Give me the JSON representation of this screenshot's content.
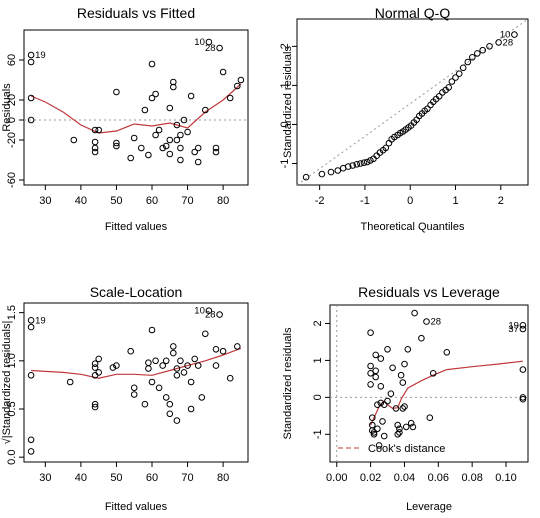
{
  "chart_data": [
    {
      "id": "rvf",
      "type": "scatter",
      "title": "Residuals vs Fitted",
      "xlabel": "Fitted values",
      "ylabel": "Residuals",
      "xlim": [
        24,
        87
      ],
      "ylim": [
        -65,
        90
      ],
      "xticks": [
        30,
        40,
        50,
        60,
        70,
        80
      ],
      "yticks": [
        -60,
        -20,
        0,
        20,
        60
      ],
      "ytick_labels": [
        "-60",
        "-20",
        "0",
        "20",
        "60"
      ],
      "hline": 0,
      "points": [
        [
          26,
          65
        ],
        [
          26,
          58
        ],
        [
          26,
          0
        ],
        [
          26,
          22
        ],
        [
          38,
          -20
        ],
        [
          44,
          -10
        ],
        [
          44,
          -22
        ],
        [
          44,
          -28
        ],
        [
          44,
          -32
        ],
        [
          45,
          -10
        ],
        [
          50,
          28
        ],
        [
          50,
          -23
        ],
        [
          50,
          -26
        ],
        [
          54,
          -38
        ],
        [
          55,
          -18
        ],
        [
          57,
          -28
        ],
        [
          58,
          10
        ],
        [
          59,
          -35
        ],
        [
          60,
          22
        ],
        [
          60,
          56
        ],
        [
          61,
          26
        ],
        [
          61,
          -15
        ],
        [
          62,
          -10
        ],
        [
          63,
          -28
        ],
        [
          64,
          -26
        ],
        [
          65,
          12
        ],
        [
          65,
          -20
        ],
        [
          65,
          -34
        ],
        [
          66,
          33
        ],
        [
          66,
          38
        ],
        [
          67,
          -5
        ],
        [
          67,
          -20
        ],
        [
          68,
          -28
        ],
        [
          68,
          -40
        ],
        [
          68,
          -15
        ],
        [
          69,
          0
        ],
        [
          70,
          -12
        ],
        [
          71,
          24
        ],
        [
          72,
          -32
        ],
        [
          73,
          -42
        ],
        [
          73,
          -28
        ],
        [
          75,
          10
        ],
        [
          76,
          78
        ],
        [
          78,
          -28
        ],
        [
          78,
          -32
        ],
        [
          79,
          72
        ],
        [
          80,
          48
        ],
        [
          82,
          22
        ],
        [
          84,
          34
        ],
        [
          85,
          40
        ]
      ],
      "smooth": [
        [
          26,
          24
        ],
        [
          30,
          18
        ],
        [
          35,
          8
        ],
        [
          40,
          -5
        ],
        [
          45,
          -13
        ],
        [
          50,
          -11
        ],
        [
          55,
          -4
        ],
        [
          60,
          -6
        ],
        [
          65,
          -3
        ],
        [
          70,
          -8
        ],
        [
          75,
          8
        ],
        [
          80,
          20
        ],
        [
          85,
          36
        ]
      ],
      "annotations": [
        {
          "label": "19",
          "x": 26,
          "y": 65,
          "anchor": "start"
        },
        {
          "label": "10",
          "x": 76,
          "y": 78,
          "anchor": "end"
        },
        {
          "label": "28",
          "x": 79,
          "y": 72,
          "anchor": "end"
        }
      ]
    },
    {
      "id": "qq",
      "type": "scatter",
      "title": "Normal Q-Q",
      "xlabel": "Theoretical Quantiles",
      "ylabel": "Standardized residuals",
      "xlim": [
        -2.5,
        2.6
      ],
      "ylim": [
        -1.55,
        2.7
      ],
      "xticks": [
        -2,
        -1,
        0,
        1,
        2
      ],
      "yticks": [
        -1,
        0,
        1,
        2
      ],
      "ytick_labels": [
        "-1",
        "0",
        "1",
        "2"
      ],
      "refline": [
        [
          -2.5,
          -1.55
        ],
        [
          2.6,
          2.7
        ]
      ],
      "points": [
        [
          -2.3,
          -1.35
        ],
        [
          -1.95,
          -1.27
        ],
        [
          -1.75,
          -1.22
        ],
        [
          -1.6,
          -1.18
        ],
        [
          -1.48,
          -1.12
        ],
        [
          -1.37,
          -1.08
        ],
        [
          -1.27,
          -1.05
        ],
        [
          -1.18,
          -1.02
        ],
        [
          -1.1,
          -1.0
        ],
        [
          -1.02,
          -0.98
        ],
        [
          -0.95,
          -0.96
        ],
        [
          -0.88,
          -0.92
        ],
        [
          -0.81,
          -0.88
        ],
        [
          -0.74,
          -0.8
        ],
        [
          -0.67,
          -0.72
        ],
        [
          -0.6,
          -0.66
        ],
        [
          -0.54,
          -0.6
        ],
        [
          -0.47,
          -0.48
        ],
        [
          -0.41,
          -0.38
        ],
        [
          -0.35,
          -0.32
        ],
        [
          -0.28,
          -0.27
        ],
        [
          -0.22,
          -0.22
        ],
        [
          -0.16,
          -0.18
        ],
        [
          -0.1,
          -0.13
        ],
        [
          -0.04,
          -0.08
        ],
        [
          0.02,
          -0.03
        ],
        [
          0.08,
          0.05
        ],
        [
          0.14,
          0.12
        ],
        [
          0.2,
          0.22
        ],
        [
          0.26,
          0.28
        ],
        [
          0.32,
          0.35
        ],
        [
          0.38,
          0.4
        ],
        [
          0.45,
          0.5
        ],
        [
          0.51,
          0.58
        ],
        [
          0.57,
          0.65
        ],
        [
          0.64,
          0.72
        ],
        [
          0.71,
          0.82
        ],
        [
          0.78,
          0.88
        ],
        [
          0.85,
          0.95
        ],
        [
          0.92,
          1.1
        ],
        [
          1.0,
          1.2
        ],
        [
          1.08,
          1.3
        ],
        [
          1.17,
          1.45
        ],
        [
          1.27,
          1.6
        ],
        [
          1.37,
          1.72
        ],
        [
          1.48,
          1.82
        ],
        [
          1.6,
          1.9
        ],
        [
          1.75,
          2.0
        ],
        [
          1.95,
          2.1
        ],
        [
          2.3,
          2.3
        ]
      ],
      "annotations": [
        {
          "label": "10",
          "x": 2.3,
          "y": 2.3,
          "anchor": "end"
        },
        {
          "label": "28",
          "x": 1.95,
          "y": 2.1,
          "anchor": "start"
        }
      ]
    },
    {
      "id": "sl",
      "type": "scatter",
      "title": "Scale-Location",
      "xlabel": "Fitted values",
      "ylabel": "√|Standardized residuals|",
      "xlim": [
        24,
        87
      ],
      "ylim": [
        -0.05,
        1.6
      ],
      "xticks": [
        30,
        40,
        50,
        60,
        70,
        80
      ],
      "yticks": [
        0.0,
        0.5,
        1.0,
        1.5
      ],
      "ytick_labels": [
        "0.0",
        "0.5",
        "1.0",
        "1.5"
      ],
      "points": [
        [
          26,
          1.42
        ],
        [
          26,
          1.35
        ],
        [
          26,
          0.85
        ],
        [
          26,
          0.18
        ],
        [
          26,
          0.06
        ],
        [
          37,
          0.78
        ],
        [
          44,
          0.97
        ],
        [
          44,
          0.93
        ],
        [
          44,
          0.85
        ],
        [
          44,
          0.55
        ],
        [
          44,
          0.52
        ],
        [
          45,
          1.02
        ],
        [
          45,
          0.88
        ],
        [
          49,
          0.93
        ],
        [
          50,
          0.95
        ],
        [
          54,
          1.1
        ],
        [
          55,
          0.72
        ],
        [
          55,
          0.65
        ],
        [
          58,
          0.55
        ],
        [
          59,
          0.92
        ],
        [
          59,
          0.98
        ],
        [
          60,
          0.78
        ],
        [
          60,
          1.32
        ],
        [
          61,
          1.0
        ],
        [
          62,
          0.72
        ],
        [
          63,
          0.95
        ],
        [
          64,
          1.0
        ],
        [
          64,
          0.62
        ],
        [
          65,
          0.55
        ],
        [
          65,
          0.45
        ],
        [
          66,
          1.08
        ],
        [
          66,
          1.15
        ],
        [
          67,
          0.92
        ],
        [
          67,
          0.85
        ],
        [
          67,
          0.38
        ],
        [
          68,
          1.0
        ],
        [
          69,
          0.88
        ],
        [
          70,
          0.95
        ],
        [
          71,
          0.78
        ],
        [
          71,
          0.5
        ],
        [
          72,
          1.02
        ],
        [
          73,
          0.95
        ],
        [
          74,
          0.62
        ],
        [
          75,
          1.28
        ],
        [
          76,
          1.52
        ],
        [
          78,
          1.12
        ],
        [
          78,
          0.95
        ],
        [
          79,
          1.48
        ],
        [
          80,
          1.1
        ],
        [
          82,
          0.82
        ],
        [
          84,
          1.15
        ]
      ],
      "smooth": [
        [
          26,
          0.9
        ],
        [
          30,
          0.89
        ],
        [
          35,
          0.88
        ],
        [
          40,
          0.86
        ],
        [
          45,
          0.82
        ],
        [
          50,
          0.86
        ],
        [
          55,
          0.86
        ],
        [
          60,
          0.85
        ],
        [
          65,
          0.9
        ],
        [
          70,
          0.95
        ],
        [
          75,
          1.0
        ],
        [
          80,
          1.06
        ],
        [
          85,
          1.13
        ]
      ],
      "annotations": [
        {
          "label": "19",
          "x": 26,
          "y": 1.42,
          "anchor": "start"
        },
        {
          "label": "10",
          "x": 76,
          "y": 1.52,
          "anchor": "end"
        },
        {
          "label": "28",
          "x": 79,
          "y": 1.48,
          "anchor": "end"
        }
      ]
    },
    {
      "id": "rvl",
      "type": "scatter",
      "title": "Residuals vs Leverage",
      "xlabel": "Leverage",
      "ylabel": "Standardized residuals",
      "xlim": [
        -0.004,
        0.113
      ],
      "ylim": [
        -1.75,
        2.5
      ],
      "xticks": [
        0.0,
        0.02,
        0.04,
        0.06,
        0.08,
        0.1
      ],
      "xtick_labels": [
        "0.00",
        "0.02",
        "0.04",
        "0.06",
        "0.08",
        "0.10"
      ],
      "yticks": [
        -1,
        0,
        1,
        2
      ],
      "ytick_labels": [
        "-1",
        "0",
        "1",
        "2"
      ],
      "hline": 0,
      "vline": 0,
      "legend": {
        "label": "Cook's distance",
        "position": "bottom-left"
      },
      "points": [
        [
          0.02,
          1.75
        ],
        [
          0.02,
          0.85
        ],
        [
          0.02,
          0.65
        ],
        [
          0.02,
          0.35
        ],
        [
          0.021,
          -0.55
        ],
        [
          0.021,
          -0.75
        ],
        [
          0.021,
          -0.9
        ],
        [
          0.022,
          -1.0
        ],
        [
          0.022,
          -0.95
        ],
        [
          0.023,
          1.15
        ],
        [
          0.023,
          0.72
        ],
        [
          0.023,
          0.55
        ],
        [
          0.024,
          -0.2
        ],
        [
          0.024,
          -0.85
        ],
        [
          0.025,
          -1.3
        ],
        [
          0.026,
          1.05
        ],
        [
          0.026,
          0.3
        ],
        [
          0.026,
          -0.15
        ],
        [
          0.027,
          -0.65
        ],
        [
          0.028,
          -0.2
        ],
        [
          0.028,
          -1.05
        ],
        [
          0.03,
          1.3
        ],
        [
          0.03,
          -0.1
        ],
        [
          0.032,
          0.1
        ],
        [
          0.033,
          0.8
        ],
        [
          0.035,
          -0.3
        ],
        [
          0.036,
          -0.75
        ],
        [
          0.036,
          -1.0
        ],
        [
          0.037,
          -0.95
        ],
        [
          0.037,
          -0.85
        ],
        [
          0.038,
          0.6
        ],
        [
          0.039,
          0.4
        ],
        [
          0.039,
          -0.3
        ],
        [
          0.04,
          -0.25
        ],
        [
          0.04,
          0.9
        ],
        [
          0.041,
          -0.8
        ],
        [
          0.042,
          1.3
        ],
        [
          0.044,
          -0.7
        ],
        [
          0.045,
          -0.8
        ],
        [
          0.046,
          2.28
        ],
        [
          0.05,
          1.6
        ],
        [
          0.053,
          2.05
        ],
        [
          0.055,
          -0.55
        ],
        [
          0.057,
          0.65
        ],
        [
          0.065,
          1.22
        ],
        [
          0.11,
          1.95
        ],
        [
          0.11,
          1.85
        ],
        [
          0.11,
          0.75
        ],
        [
          0.11,
          0.0
        ],
        [
          0.11,
          -0.05
        ]
      ],
      "smooth": [
        [
          0.02,
          -0.75
        ],
        [
          0.022,
          -0.55
        ],
        [
          0.025,
          -0.25
        ],
        [
          0.028,
          -0.1
        ],
        [
          0.03,
          -0.2
        ],
        [
          0.033,
          -0.3
        ],
        [
          0.036,
          -0.28
        ],
        [
          0.038,
          -0.05
        ],
        [
          0.042,
          0.25
        ],
        [
          0.05,
          0.45
        ],
        [
          0.058,
          0.62
        ],
        [
          0.065,
          0.75
        ],
        [
          0.08,
          0.83
        ],
        [
          0.095,
          0.9
        ],
        [
          0.11,
          0.98
        ]
      ],
      "annotations": [
        {
          "label": "28",
          "x": 0.053,
          "y": 2.05,
          "anchor": "start"
        },
        {
          "label": "19",
          "x": 0.11,
          "y": 1.95,
          "anchor": "end"
        },
        {
          "label": "37",
          "x": 0.11,
          "y": 1.85,
          "anchor": "end"
        }
      ]
    }
  ]
}
